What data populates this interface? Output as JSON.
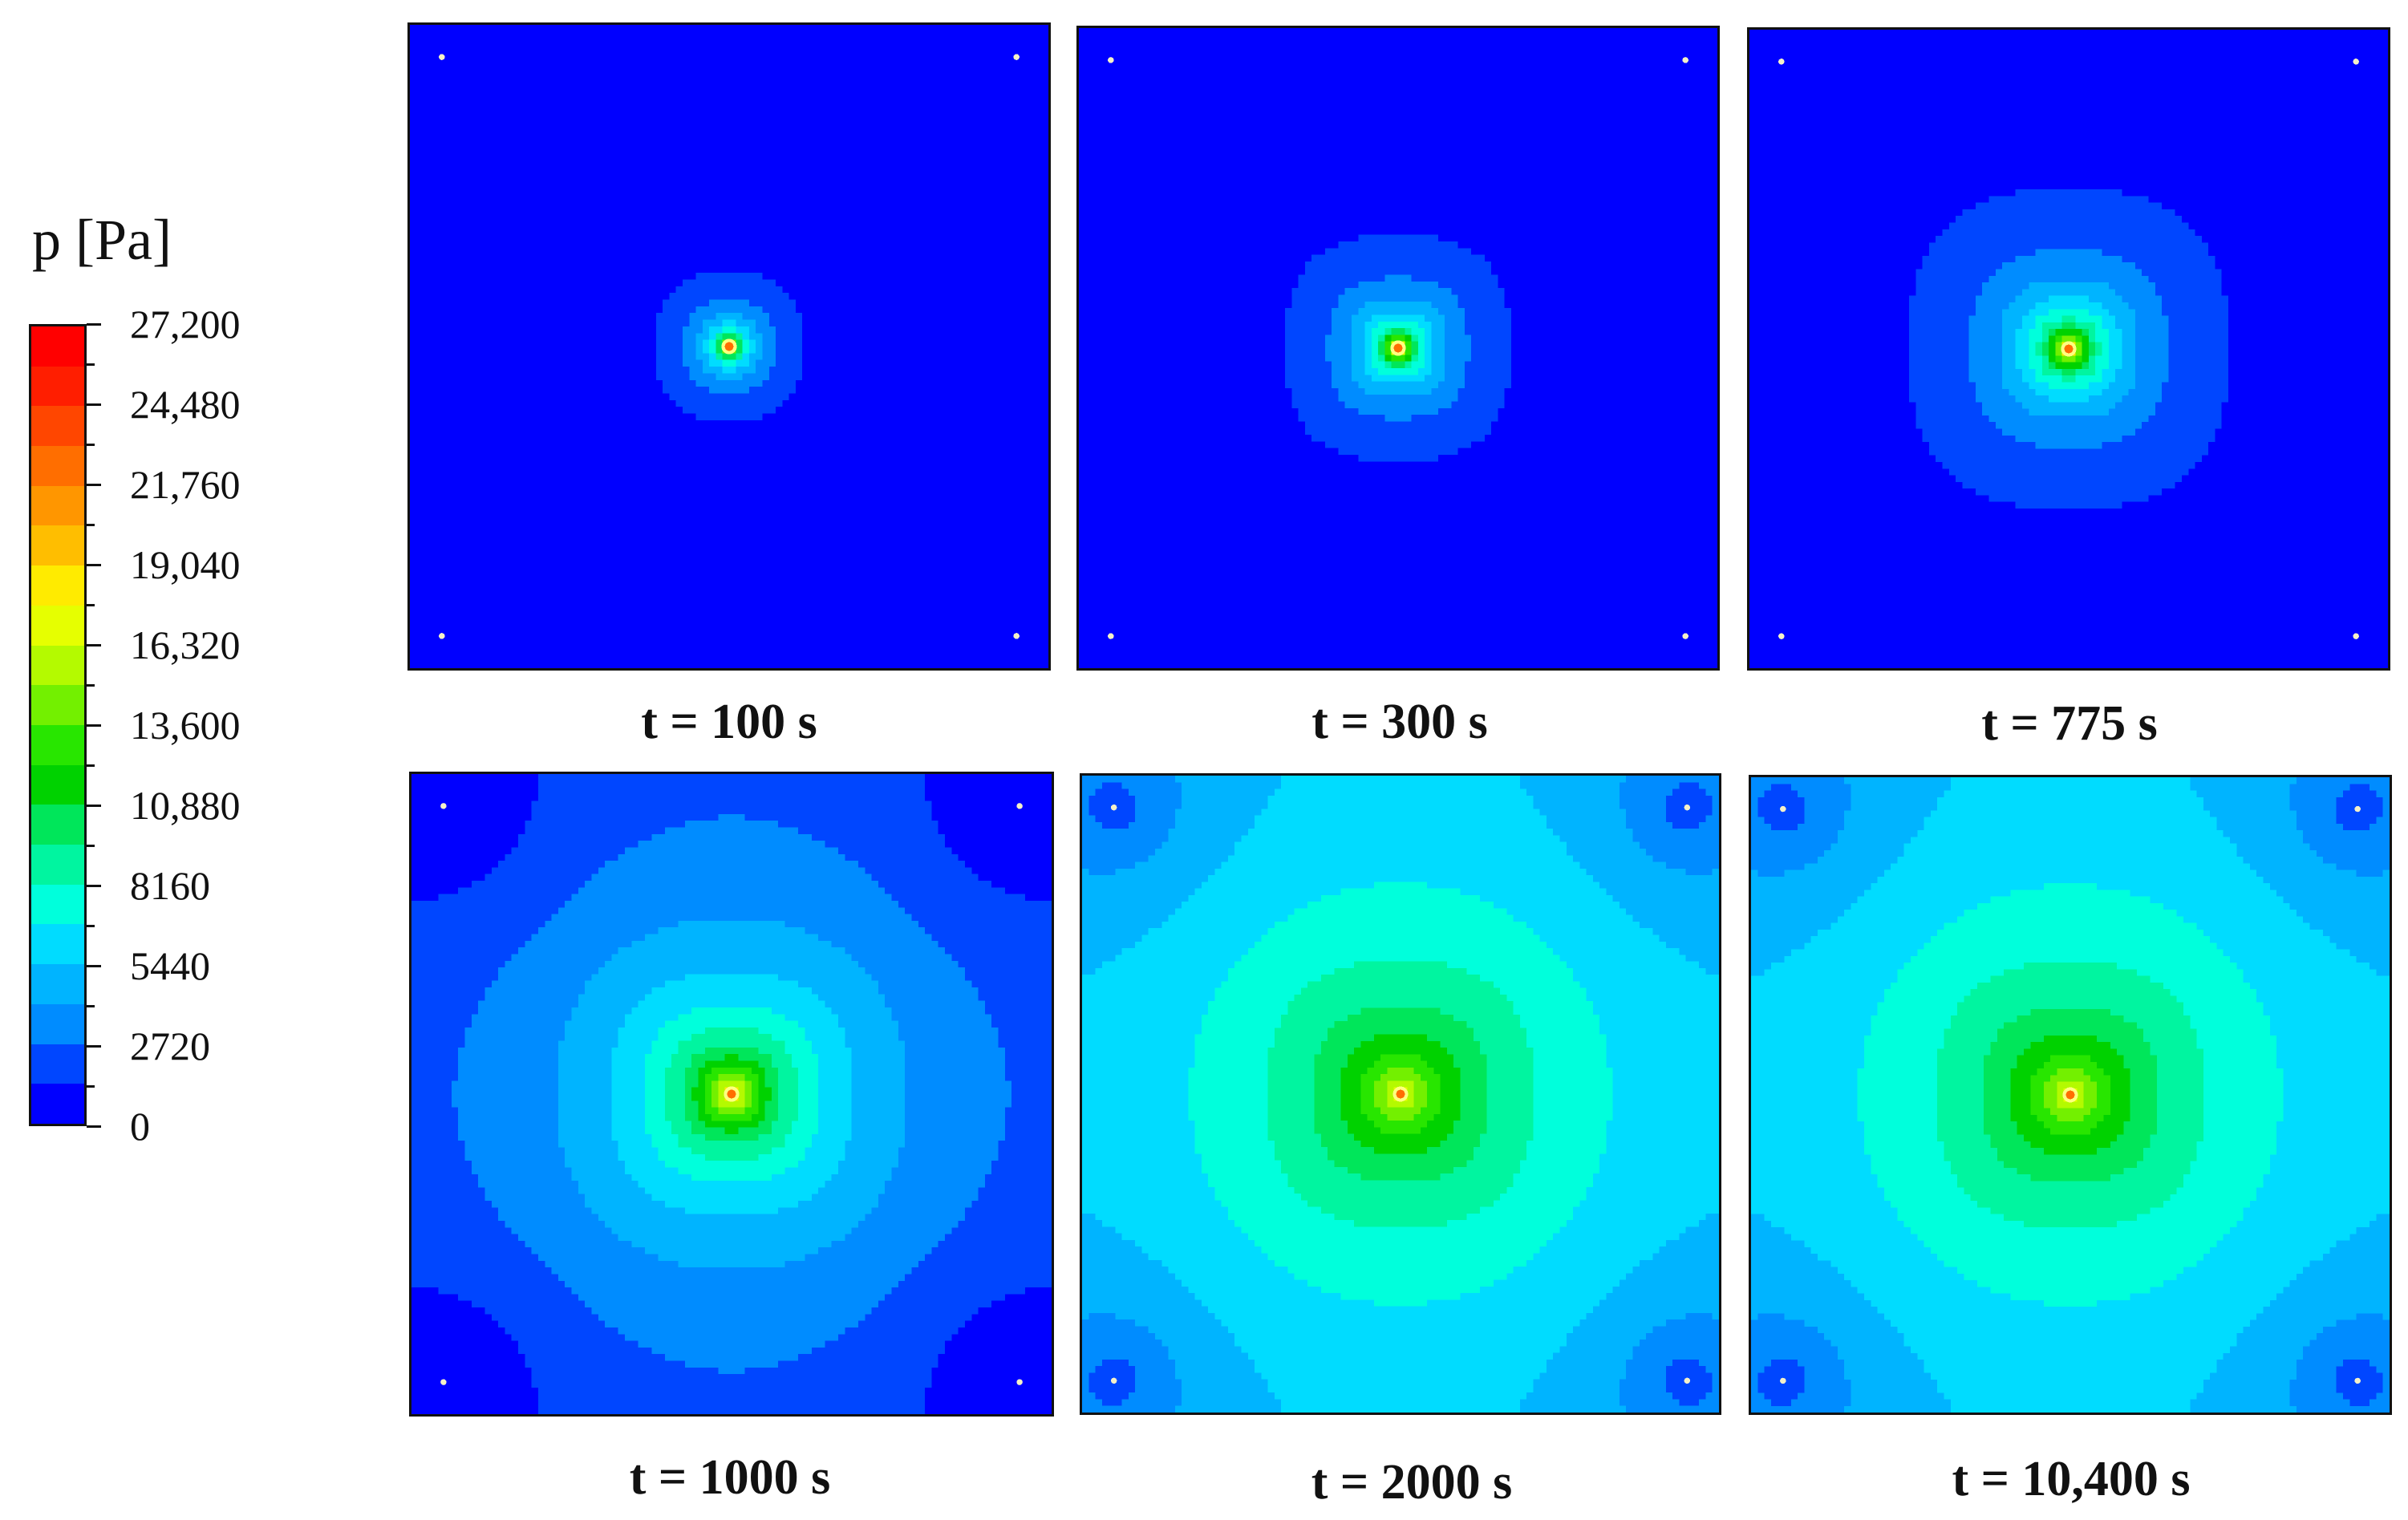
{
  "legend": {
    "title": "p [Pa]",
    "min": 0,
    "max": 27200,
    "tick_labels": [
      "27,200",
      "24,480",
      "21,760",
      "19,040",
      "16,320",
      "13,600",
      "10,880",
      "8160",
      "5440",
      "2720",
      "0"
    ],
    "tick_values": [
      27200,
      24480,
      21760,
      19040,
      16320,
      13600,
      10880,
      8160,
      5440,
      2720,
      0
    ],
    "band_colors": [
      "#0000ff",
      "#0046ff",
      "#008cff",
      "#00b4ff",
      "#00dcff",
      "#00ffdc",
      "#00f5a0",
      "#00e65a",
      "#00d200",
      "#28e600",
      "#73f000",
      "#b4fa00",
      "#e6ff00",
      "#ffeb00",
      "#ffbe00",
      "#ff9600",
      "#ff6e00",
      "#ff4600",
      "#ff1e00",
      "#ff0000"
    ]
  },
  "panels": [
    {
      "label": "t = 100 s"
    },
    {
      "label": "t = 300 s"
    },
    {
      "label": "t = 775 s"
    },
    {
      "label": "t = 1000 s"
    },
    {
      "label": "t = 2000 s"
    },
    {
      "label": "t = 10,400 s"
    }
  ]
}
